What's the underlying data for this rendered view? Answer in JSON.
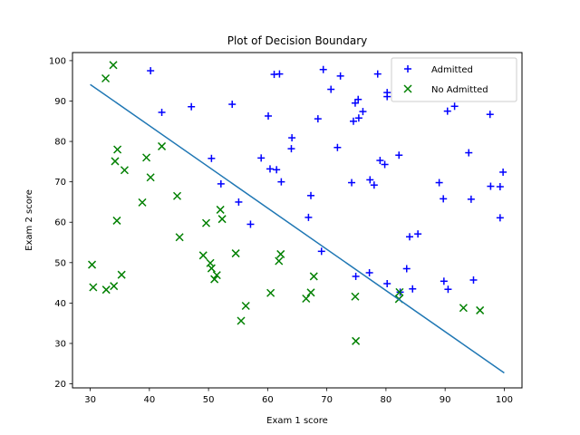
{
  "chart_data": {
    "type": "scatter",
    "title": "Plot of Decision Boundary",
    "xlabel": "Exam 1 score",
    "ylabel": "Exam 2 score",
    "xlim": [
      27,
      103
    ],
    "ylim": [
      19,
      102
    ],
    "xticks": [
      "30",
      "40",
      "50",
      "60",
      "70",
      "80",
      "90",
      "100"
    ],
    "yticks": [
      "20",
      "30",
      "40",
      "50",
      "60",
      "70",
      "80",
      "90",
      "100"
    ],
    "grid": false,
    "legend_position": "top-right",
    "series": [
      {
        "name": "Admitted",
        "marker": "plus",
        "color": "#0000ff",
        "points": [
          [
            40.2,
            97.5
          ],
          [
            42.1,
            87.2
          ],
          [
            47.1,
            88.6
          ],
          [
            50.5,
            75.8
          ],
          [
            52.1,
            69.5
          ],
          [
            54.0,
            89.2
          ],
          [
            55.1,
            65.0
          ],
          [
            57.1,
            59.5
          ],
          [
            58.9,
            75.9
          ],
          [
            60.1,
            86.3
          ],
          [
            60.4,
            73.2
          ],
          [
            61.1,
            96.6
          ],
          [
            61.5,
            73.0
          ],
          [
            62.0,
            96.7
          ],
          [
            62.3,
            70.0
          ],
          [
            64.0,
            78.2
          ],
          [
            64.1,
            80.9
          ],
          [
            66.9,
            61.2
          ],
          [
            67.3,
            66.6
          ],
          [
            68.5,
            85.6
          ],
          [
            69.1,
            52.8
          ],
          [
            69.4,
            97.8
          ],
          [
            70.7,
            92.9
          ],
          [
            71.8,
            78.5
          ],
          [
            72.3,
            96.2
          ],
          [
            74.2,
            69.8
          ],
          [
            74.5,
            85.0
          ],
          [
            74.8,
            89.5
          ],
          [
            74.9,
            46.6
          ],
          [
            75.3,
            90.4
          ],
          [
            75.4,
            85.8
          ],
          [
            76.1,
            87.4
          ],
          [
            77.2,
            47.5
          ],
          [
            77.3,
            70.5
          ],
          [
            78.0,
            69.2
          ],
          [
            78.6,
            96.7
          ],
          [
            79.0,
            75.3
          ],
          [
            79.8,
            74.3
          ],
          [
            80.2,
            92.1
          ],
          [
            80.2,
            91.1
          ],
          [
            80.2,
            44.8
          ],
          [
            82.2,
            76.6
          ],
          [
            82.4,
            42.7
          ],
          [
            83.5,
            48.5
          ],
          [
            84.0,
            56.4
          ],
          [
            84.5,
            43.5
          ],
          [
            85.4,
            57.1
          ],
          [
            89.0,
            69.8
          ],
          [
            89.7,
            65.8
          ],
          [
            89.8,
            45.4
          ],
          [
            90.4,
            87.5
          ],
          [
            90.5,
            43.4
          ],
          [
            91.6,
            88.7
          ],
          [
            94.0,
            77.2
          ],
          [
            94.4,
            65.7
          ],
          [
            94.8,
            45.7
          ],
          [
            97.6,
            86.7
          ],
          [
            97.7,
            68.9
          ],
          [
            99.3,
            68.8
          ],
          [
            99.3,
            61.1
          ],
          [
            99.8,
            72.4
          ]
        ]
      },
      {
        "name": "No Admitted",
        "marker": "x",
        "color": "#008000",
        "points": [
          [
            30.3,
            49.5
          ],
          [
            30.5,
            43.9
          ],
          [
            32.6,
            95.6
          ],
          [
            32.7,
            43.3
          ],
          [
            33.9,
            98.9
          ],
          [
            34.0,
            44.2
          ],
          [
            34.2,
            75.1
          ],
          [
            34.5,
            60.4
          ],
          [
            34.6,
            78.0
          ],
          [
            35.3,
            47.0
          ],
          [
            35.8,
            72.9
          ],
          [
            38.8,
            64.9
          ],
          [
            39.5,
            76.0
          ],
          [
            40.2,
            71.1
          ],
          [
            42.1,
            78.8
          ],
          [
            44.7,
            66.5
          ],
          [
            45.1,
            56.3
          ],
          [
            49.1,
            51.8
          ],
          [
            49.6,
            59.8
          ],
          [
            50.3,
            49.9
          ],
          [
            50.5,
            48.6
          ],
          [
            51.0,
            45.9
          ],
          [
            51.4,
            46.9
          ],
          [
            52.0,
            63.1
          ],
          [
            52.3,
            60.8
          ],
          [
            54.6,
            52.3
          ],
          [
            55.5,
            35.6
          ],
          [
            56.3,
            39.3
          ],
          [
            60.5,
            42.5
          ],
          [
            61.9,
            50.4
          ],
          [
            62.2,
            52.1
          ],
          [
            66.5,
            41.1
          ],
          [
            67.3,
            42.6
          ],
          [
            67.8,
            46.6
          ],
          [
            74.8,
            41.6
          ],
          [
            74.9,
            30.6
          ],
          [
            82.2,
            41.0
          ],
          [
            82.3,
            42.7
          ],
          [
            93.1,
            38.8
          ],
          [
            95.9,
            38.2
          ]
        ]
      }
    ],
    "boundary": [
      [
        30.0,
        94.1
      ],
      [
        100.0,
        22.7
      ]
    ],
    "boundary_color": "#1f77b4"
  }
}
